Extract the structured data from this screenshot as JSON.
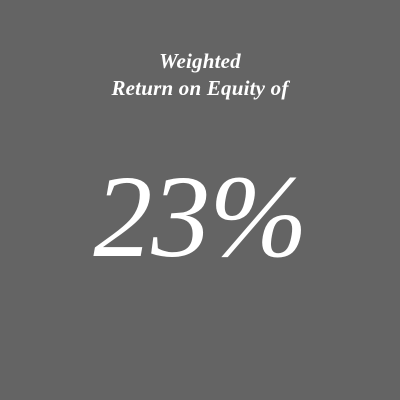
{
  "heading": {
    "line1": "Weighted",
    "line2": "Return on Equity of"
  },
  "value": "23%",
  "colors": {
    "background": "#646464",
    "text": "#ffffff"
  }
}
